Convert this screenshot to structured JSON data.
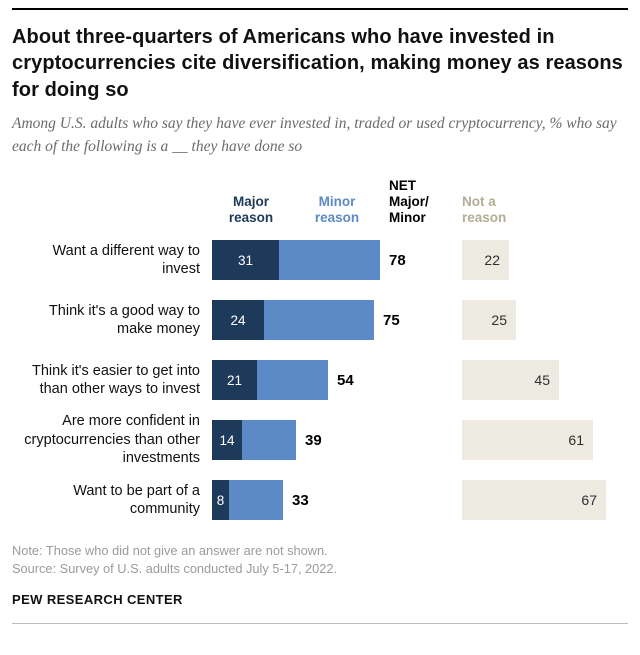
{
  "header": {
    "title": "About three-quarters of Americans who have invested in cryptocurrencies cite diversification, making money as reasons for doing so",
    "subtitle": "Among U.S. adults who say they have ever invested in, traded or used cryptocurrency, % who say each of the following is a __ they have done so"
  },
  "chart_data": {
    "type": "bar",
    "orientation": "horizontal",
    "column_headers": {
      "major": "Major\nreason",
      "minor": "Minor\nreason",
      "net": "NET\nMajor/\nMinor",
      "not": "Not a\nreason"
    },
    "categories": [
      "Want a different way to invest",
      "Think it's a good way to make money",
      "Think it's easier to get into than other ways to invest",
      "Are more confident in cryptocurrencies than other investments",
      "Want to be part of a community"
    ],
    "series": [
      {
        "name": "Major reason",
        "values": [
          31,
          24,
          21,
          14,
          8
        ]
      },
      {
        "name": "Minor reason",
        "values": [
          47,
          51,
          33,
          25,
          25
        ]
      },
      {
        "name": "NET Major/Minor",
        "values": [
          78,
          75,
          54,
          39,
          33
        ]
      },
      {
        "name": "Not a reason",
        "values": [
          22,
          25,
          45,
          61,
          67
        ]
      }
    ],
    "colors": {
      "major": "#1e3a5a",
      "minor": "#5b8ac6",
      "not_bar": "#eceae1",
      "net_text": "#000000",
      "not_header_text": "#b3ad91"
    },
    "xlim": [
      0,
      100
    ],
    "grid": false,
    "legend_position": "top"
  },
  "footer": {
    "note": "Note: Those who did not give an answer are not shown.",
    "source": "Source: Survey of U.S. adults conducted July 5-17, 2022.",
    "brand": "PEW RESEARCH CENTER"
  }
}
